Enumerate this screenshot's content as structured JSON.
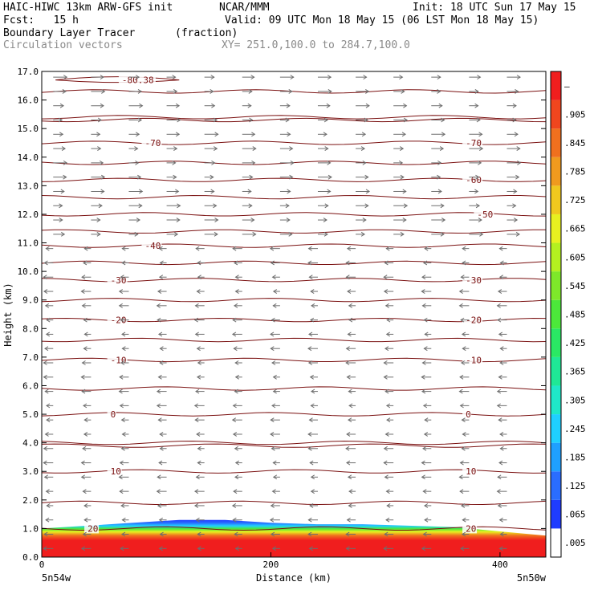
{
  "header": {
    "line1_left": "HAIC-HIWC 13km ARW-GFS init",
    "line1_mid": "NCAR/MMM",
    "line1_right": "Init: 18 UTC Sun 17 May 15",
    "line2_left": "Fcst:   15 h",
    "line2_right": "Valid: 09 UTC Mon 18 May 15 (06 LST Mon 18 May 15)",
    "line3_left": "Boundary Layer Tracer",
    "line3_mid": "(fraction)",
    "line4_left": "Circulation vectors",
    "line4_mid": "XY= 251.0,100.0 to 284.7,100.0"
  },
  "chart_data": {
    "type": "heatmap",
    "title": "Boundary Layer Tracer",
    "units": "(fraction)",
    "xlabel": "Distance (km)",
    "ylabel": "Height (km)",
    "xlim": [
      0,
      440
    ],
    "ylim": [
      0,
      17
    ],
    "x_ticks": [
      0,
      200,
      400
    ],
    "y_ticks": [
      "0.0",
      "1.0",
      "2.0",
      "3.0",
      "4.0",
      "5.0",
      "6.0",
      "7.0",
      "8.0",
      "9.0",
      "10.0",
      "11.0",
      "12.0",
      "13.0",
      "14.0",
      "15.0",
      "16.0",
      "17.0"
    ],
    "x_endpoints": {
      "left": "5n54w",
      "right": "5n50w"
    },
    "colorbar": {
      "labels": [
        ".005",
        ".065",
        ".125",
        ".185",
        ".245",
        ".305",
        ".365",
        ".425",
        ".485",
        ".545",
        ".605",
        ".665",
        ".725",
        ".785",
        ".845",
        ".905",
        "–"
      ],
      "colors": [
        "#ffffff",
        "#1f3cff",
        "#2a6dff",
        "#1fa0ff",
        "#1fd0ff",
        "#1fe8c8",
        "#1fe896",
        "#2ae864",
        "#4ce83a",
        "#7ee82a",
        "#b4f020",
        "#e8f020",
        "#f0c81e",
        "#f09a1e",
        "#f0701e",
        "#f0461e",
        "#f01e1e"
      ]
    },
    "tracer_top_km": [
      [
        0,
        1.0
      ],
      [
        40,
        1.1
      ],
      [
        80,
        1.2
      ],
      [
        120,
        1.3
      ],
      [
        160,
        1.3
      ],
      [
        200,
        1.2
      ],
      [
        240,
        1.15
      ],
      [
        280,
        1.15
      ],
      [
        320,
        1.1
      ],
      [
        360,
        1.05
      ],
      [
        400,
        0.9
      ],
      [
        440,
        0.75
      ]
    ],
    "temperature_contours": [
      {
        "label": "20",
        "height_km": 1.0,
        "label_x": [
          40,
          370
        ]
      },
      {
        "label": "10",
        "height_km": 3.0,
        "label_x": [
          60,
          370
        ]
      },
      {
        "label": "0",
        "height_km": 5.0,
        "label_x": [
          60,
          370
        ]
      },
      {
        "label": "-10",
        "height_km": 6.9,
        "label_x": [
          60,
          370
        ]
      },
      {
        "label": "-20",
        "height_km": 8.3,
        "label_x": [
          60,
          370
        ]
      },
      {
        "label": "-30",
        "height_km": 9.7,
        "label_x": [
          60,
          370
        ]
      },
      {
        "label": "-40",
        "height_km": 10.9,
        "label_x": [
          90
        ]
      },
      {
        "label": "-50",
        "height_km": 12.0,
        "label_x": [
          380
        ]
      },
      {
        "label": "-60",
        "height_km": 13.2,
        "label_x": [
          370
        ]
      },
      {
        "label": "-70",
        "height_km": 14.5,
        "label_x": [
          90,
          370
        ]
      },
      {
        "label": "-80.38",
        "height_km": 16.7,
        "label_x": [
          70
        ]
      }
    ],
    "extra_contour_heights_km": [
      1.9,
      3.9,
      4.0,
      5.9,
      7.6,
      9.0,
      10.3,
      11.4,
      12.6,
      13.8,
      15.3,
      15.4,
      16.3
    ],
    "vectors": {
      "direction_below_km": 11.0,
      "direction_low": "westward",
      "direction_high": "eastward"
    }
  }
}
